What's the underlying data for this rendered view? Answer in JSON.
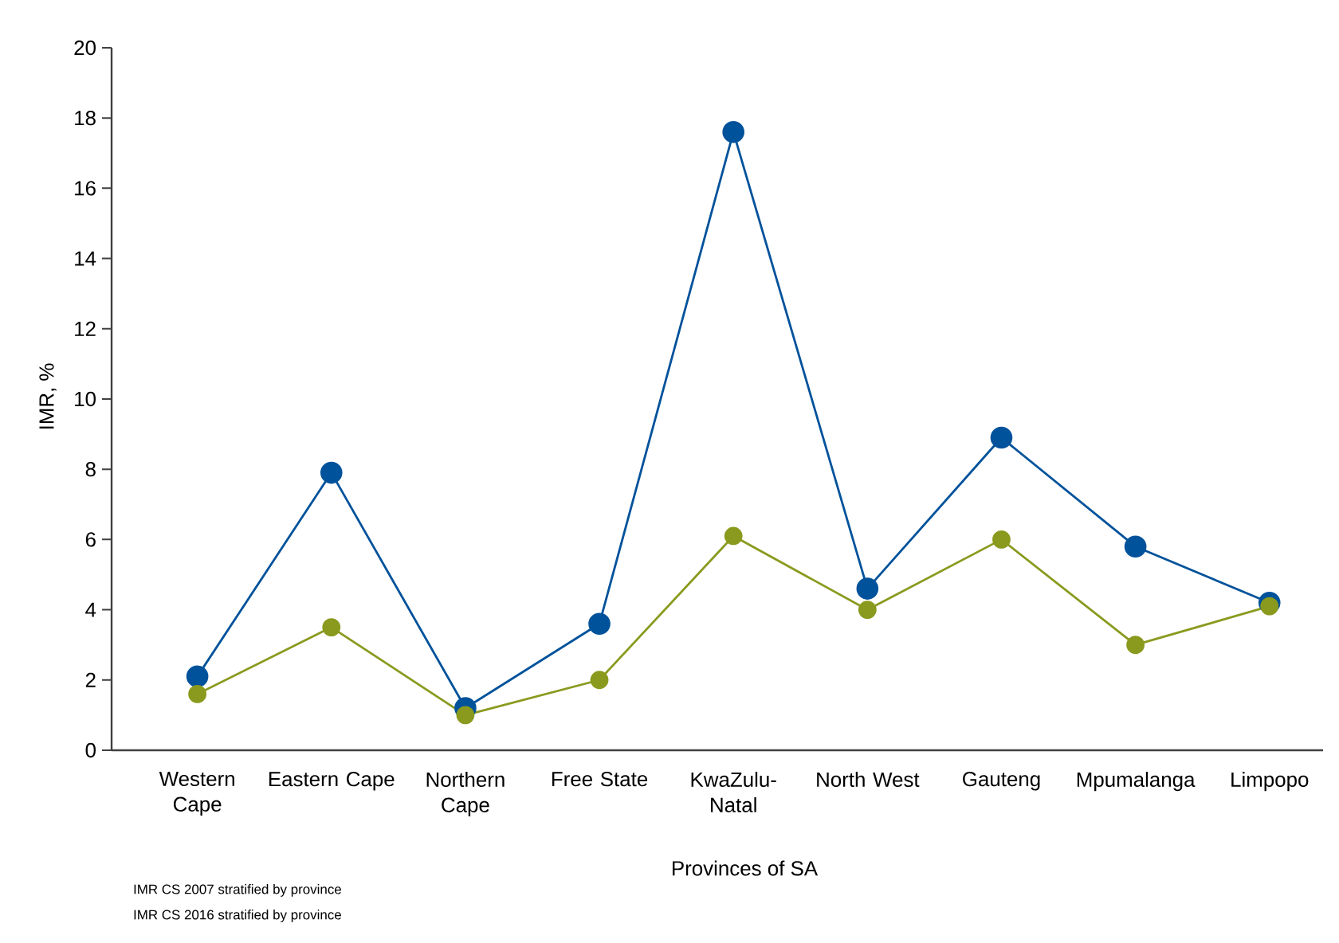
{
  "chart_data": {
    "type": "line",
    "xlabel": "Provinces of SA",
    "ylabel": "IMR, %",
    "categories": [
      "Western Cape",
      "Eastern Cape",
      "Northern Cape",
      "Free State",
      "KwaZulu-Natal",
      "North West",
      "Gauteng",
      "Mpumalanga",
      "Limpopo"
    ],
    "series": [
      {
        "color": "#00529b",
        "values": [
          2.1,
          7.9,
          1.2,
          3.6,
          17.6,
          4.6,
          8.9,
          5.8,
          4.2
        ]
      },
      {
        "color": "#8a9a1e",
        "values": [
          1.6,
          3.5,
          1.0,
          2.0,
          6.1,
          4.0,
          6.0,
          3.0,
          4.1
        ]
      }
    ],
    "ylim": [
      0,
      20
    ],
    "yticks": [
      0,
      2,
      4,
      6,
      8,
      10,
      12,
      14,
      16,
      18,
      20
    ],
    "marker": "circle",
    "line_style": "solid",
    "annotations": [
      "IMR CS 2007 stratified by province",
      "IMR CS 2016 stratified by province"
    ]
  }
}
